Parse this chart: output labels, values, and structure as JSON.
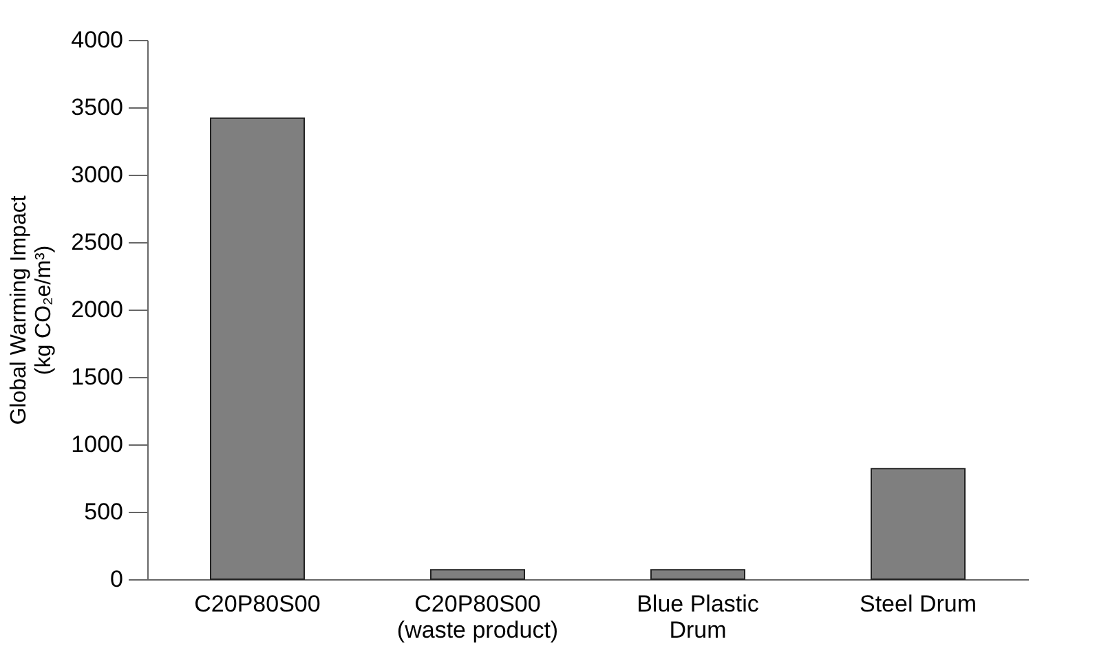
{
  "chart_data": {
    "type": "bar",
    "ylabel": "Global Warming Impact\n(kg CO₂e/m³)",
    "categories": [
      "C20P80S00",
      "C20P80S00\n(waste product)",
      "Blue Plastic\nDrum",
      "Steel Drum"
    ],
    "values": [
      3420,
      70,
      70,
      820
    ],
    "color": "#7f7f7f",
    "ylim": [
      0,
      4000
    ],
    "yticks": [
      0,
      500,
      1000,
      1500,
      2000,
      2500,
      3000,
      3500,
      4000
    ],
    "grid": false
  }
}
